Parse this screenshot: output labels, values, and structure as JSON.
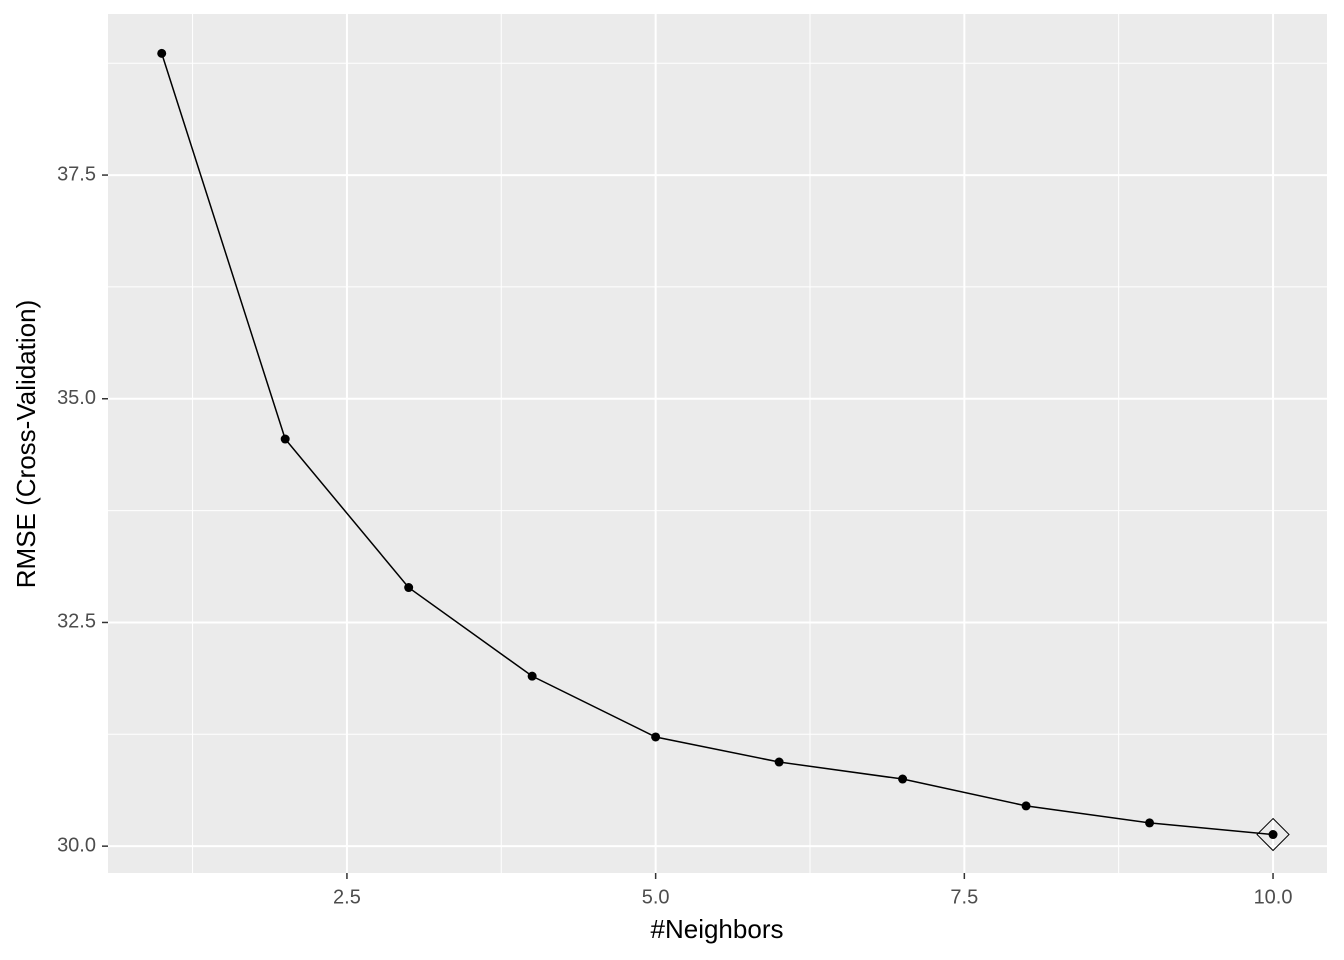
{
  "chart_data": {
    "type": "line",
    "x_label": "#Neighbors",
    "y_label": "RMSE (Cross-Validation)",
    "x": [
      1,
      2,
      3,
      4,
      5,
      6,
      7,
      8,
      9,
      10
    ],
    "series": [
      {
        "color": "#000000",
        "values": [
          38.86,
          34.55,
          32.89,
          31.9,
          31.22,
          30.94,
          30.75,
          30.45,
          30.26,
          30.13
        ]
      }
    ],
    "highlight": 9,
    "xlim": [
      0.565,
      10.437
    ],
    "ylim": [
      29.7,
      39.3
    ],
    "xticks": [
      {
        "value": 2.5,
        "label": "2.5"
      },
      {
        "value": 5,
        "label": "5.0"
      },
      {
        "value": 7.5,
        "label": "7.5"
      },
      {
        "value": 10,
        "label": "10.0"
      }
    ],
    "yticks": [
      {
        "value": 30,
        "label": "30.0"
      },
      {
        "value": 32.5,
        "label": "32.5"
      },
      {
        "value": 35,
        "label": "35.0"
      },
      {
        "value": 37.5,
        "label": "37.5"
      }
    ],
    "grid": true,
    "minor_grid": true
  }
}
